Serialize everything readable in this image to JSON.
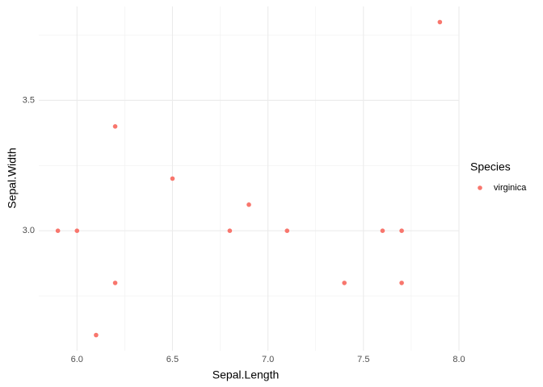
{
  "chart_data": {
    "type": "scatter",
    "x_label": "Sepal.Length",
    "y_label": "Sepal.Width",
    "series": [
      {
        "name": "virginica",
        "color": "#F8766D",
        "x": [
          5.9,
          6.0,
          6.1,
          6.2,
          6.2,
          6.5,
          6.8,
          6.9,
          7.1,
          7.4,
          7.6,
          7.7,
          7.7,
          7.9
        ],
        "values": [
          3.0,
          3.0,
          2.6,
          3.4,
          2.8,
          3.2,
          3.0,
          3.1,
          3.0,
          2.8,
          3.0,
          3.0,
          2.8,
          3.8
        ]
      }
    ],
    "legend_title": "Species",
    "legend": "right",
    "xlim": [
      5.8,
      8.0
    ],
    "ylim": [
      2.54,
      3.86
    ],
    "xticks": [
      {
        "value": 6.0,
        "label": "6.0"
      },
      {
        "value": 6.5,
        "label": "6.5"
      },
      {
        "value": 7.0,
        "label": "7.0"
      },
      {
        "value": 7.5,
        "label": "7.5"
      },
      {
        "value": 8.0,
        "label": "8.0"
      }
    ],
    "yticks": [
      {
        "value": 3.0,
        "label": "3.0"
      },
      {
        "value": 3.5,
        "label": "3.5"
      }
    ],
    "xminorticks": [
      6.25,
      6.75,
      7.25,
      7.75
    ],
    "yminorticks": [
      2.75,
      3.25,
      3.75
    ],
    "grid": true
  }
}
